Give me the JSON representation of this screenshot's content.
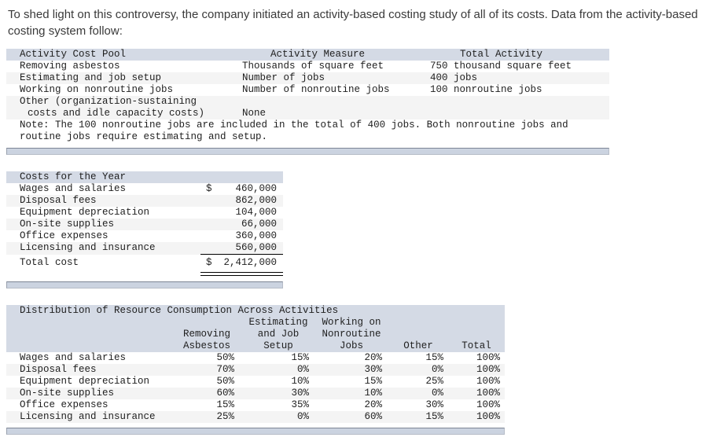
{
  "intro": "To shed light on this controversy, the company initiated an activity-based costing study of all of its costs. Data from the activity-based costing system follow:",
  "activity_table": {
    "col_headers": {
      "pool": "Activity Cost Pool",
      "measure": "Activity Measure",
      "total": "Total Activity"
    },
    "rows": [
      {
        "pool": "Removing asbestos",
        "measure": "Thousands of square feet",
        "total": "750 thousand square feet"
      },
      {
        "pool": "Estimating and job setup",
        "measure": "Number of jobs",
        "total": "400 jobs"
      },
      {
        "pool": "Working on nonroutine jobs",
        "measure": "Number of nonroutine jobs",
        "total": "100 nonroutine jobs"
      }
    ],
    "other_row": {
      "pool_line1": "Other (organization-sustaining",
      "pool_line2": "costs and idle capacity costs)",
      "measure": "None"
    },
    "note_line1": "Note: The 100 nonroutine jobs are included in the total of 400 jobs. Both nonroutine jobs and",
    "note_line2": "routine jobs require estimating and setup."
  },
  "costs_table": {
    "title": "Costs for the Year",
    "rows": [
      {
        "label": "Wages and salaries",
        "currency": "$",
        "amount": "460,000"
      },
      {
        "label": "Disposal fees",
        "currency": "",
        "amount": "862,000"
      },
      {
        "label": "Equipment depreciation",
        "currency": "",
        "amount": "104,000"
      },
      {
        "label": "On-site supplies",
        "currency": "",
        "amount": "66,000"
      },
      {
        "label": "Office expenses",
        "currency": "",
        "amount": "360,000"
      },
      {
        "label": "Licensing and insurance",
        "currency": "",
        "amount": "560,000"
      }
    ],
    "total": {
      "label": "Total cost",
      "currency": "$",
      "amount": "2,412,000"
    }
  },
  "distribution_table": {
    "title": "Distribution of Resource Consumption Across Activities",
    "columns": [
      {
        "lines": [
          "",
          "Removing",
          "Asbestos"
        ]
      },
      {
        "lines": [
          "Estimating",
          "and Job",
          "Setup"
        ]
      },
      {
        "lines": [
          "Working on",
          "Nonroutine",
          "Jobs"
        ]
      },
      {
        "lines": [
          "",
          "",
          "Other"
        ]
      },
      {
        "lines": [
          "",
          "",
          "Total"
        ]
      }
    ],
    "rows": [
      {
        "label": "Wages and salaries",
        "values": [
          "50%",
          "15%",
          "20%",
          "15%",
          "100%"
        ]
      },
      {
        "label": "Disposal fees",
        "values": [
          "70%",
          "0%",
          "30%",
          "0%",
          "100%"
        ]
      },
      {
        "label": "Equipment depreciation",
        "values": [
          "50%",
          "10%",
          "15%",
          "25%",
          "100%"
        ]
      },
      {
        "label": "On-site supplies",
        "values": [
          "60%",
          "30%",
          "10%",
          "0%",
          "100%"
        ]
      },
      {
        "label": "Office expenses",
        "values": [
          "15%",
          "35%",
          "20%",
          "30%",
          "100%"
        ]
      },
      {
        "label": "Licensing and insurance",
        "values": [
          "25%",
          "0%",
          "60%",
          "15%",
          "100%"
        ]
      }
    ]
  },
  "colors": {
    "header_band": "#d4dae5",
    "row_stripe": "#f4f4f4",
    "scrollbar_fill": "#cbd3e0",
    "text": "#1f1f1f"
  }
}
